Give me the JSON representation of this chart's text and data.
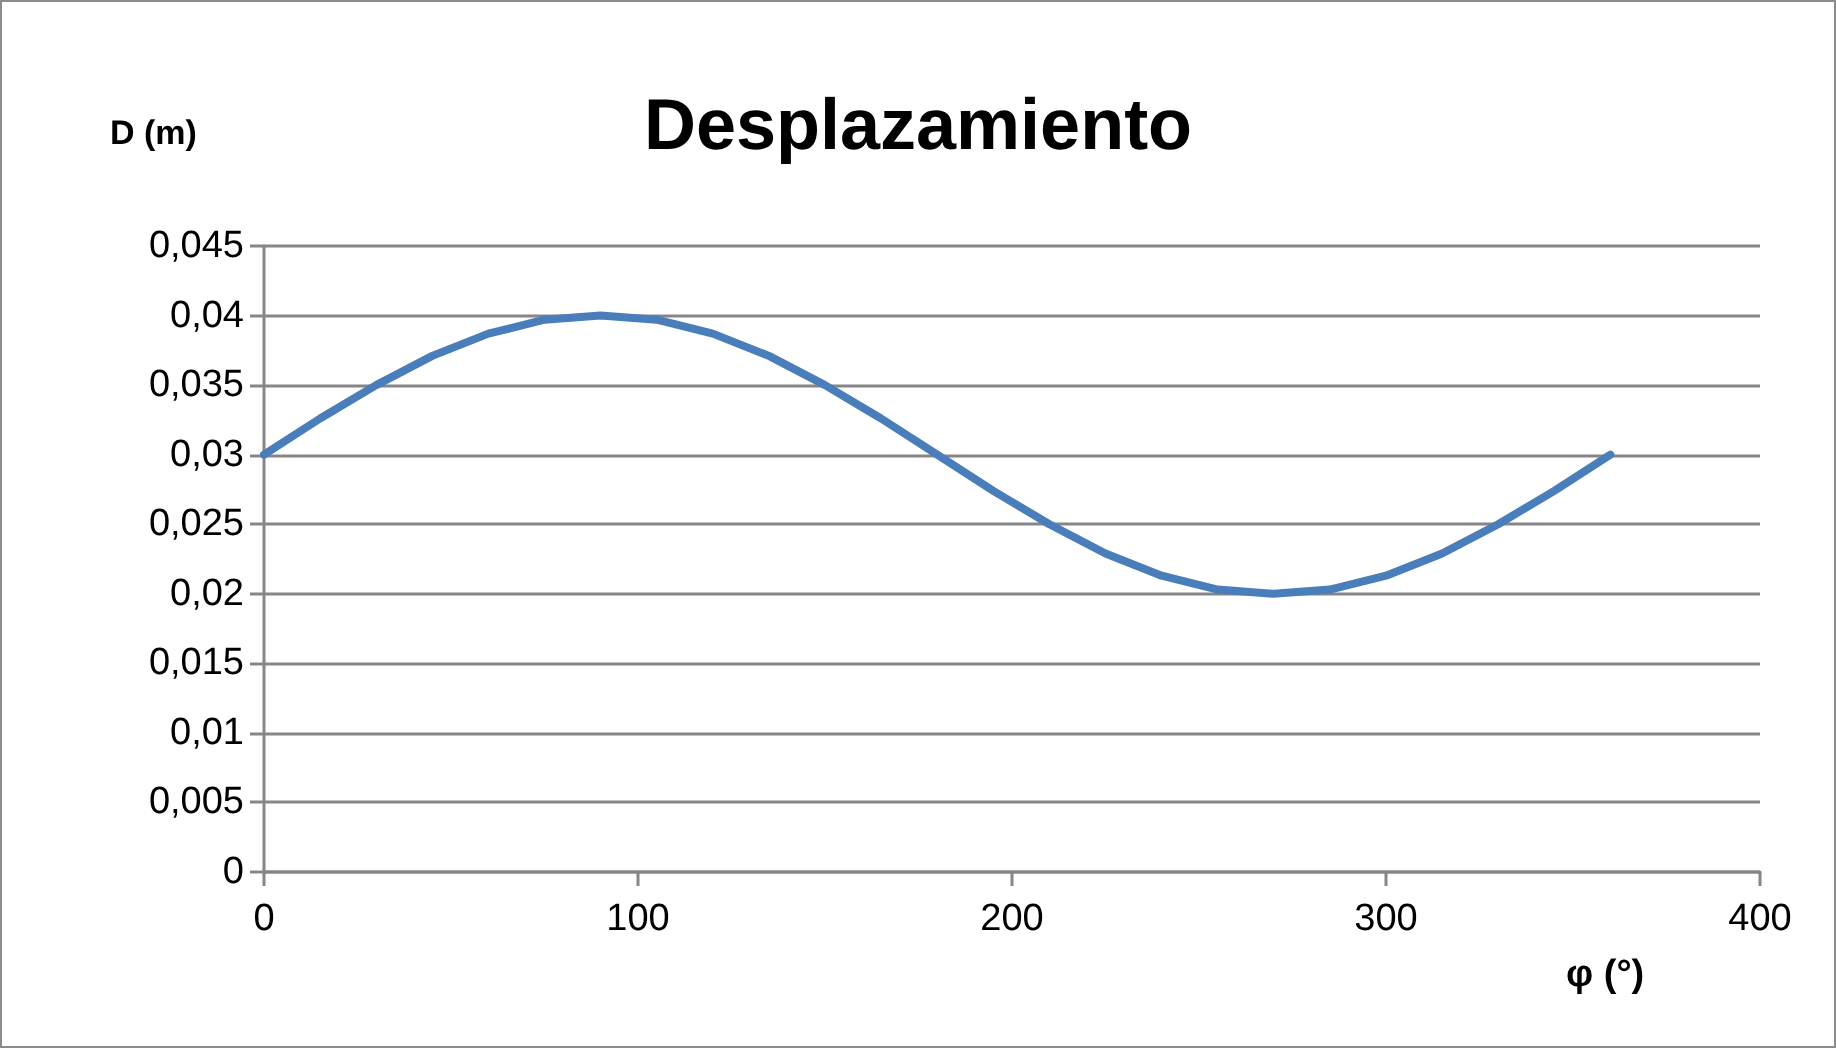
{
  "chart_data": {
    "type": "line",
    "title": "Desplazamiento",
    "xlabel": "φ (°)",
    "ylabel": "D (m)",
    "series": [
      {
        "color": "#4a7ebb",
        "x": [
          0,
          15,
          30,
          45,
          60,
          75,
          90,
          105,
          120,
          135,
          150,
          165,
          180,
          195,
          210,
          225,
          240,
          255,
          270,
          285,
          300,
          315,
          330,
          345,
          360
        ],
        "values": [
          0.03,
          0.0326,
          0.035,
          0.0371,
          0.0387,
          0.0397,
          0.04,
          0.0397,
          0.0387,
          0.0371,
          0.035,
          0.0326,
          0.03,
          0.0274,
          0.025,
          0.0229,
          0.0213,
          0.0203,
          0.02,
          0.0203,
          0.0213,
          0.0229,
          0.025,
          0.0274,
          0.03
        ]
      }
    ],
    "xlim": [
      0,
      400
    ],
    "xticks": [
      0,
      100,
      200,
      300,
      400
    ],
    "ylim": [
      0,
      0.045
    ],
    "yticks": [
      {
        "value": 0,
        "label": "0"
      },
      {
        "value": 0.005,
        "label": "0,005"
      },
      {
        "value": 0.01,
        "label": "0,01"
      },
      {
        "value": 0.015,
        "label": "0,015"
      },
      {
        "value": 0.02,
        "label": "0,02"
      },
      {
        "value": 0.025,
        "label": "0,025"
      },
      {
        "value": 0.03,
        "label": "0,03"
      },
      {
        "value": 0.035,
        "label": "0,035"
      },
      {
        "value": 0.04,
        "label": "0,04"
      },
      {
        "value": 0.045,
        "label": "0,045"
      }
    ],
    "grid": "y",
    "marker": "none",
    "line_style": "solid"
  }
}
